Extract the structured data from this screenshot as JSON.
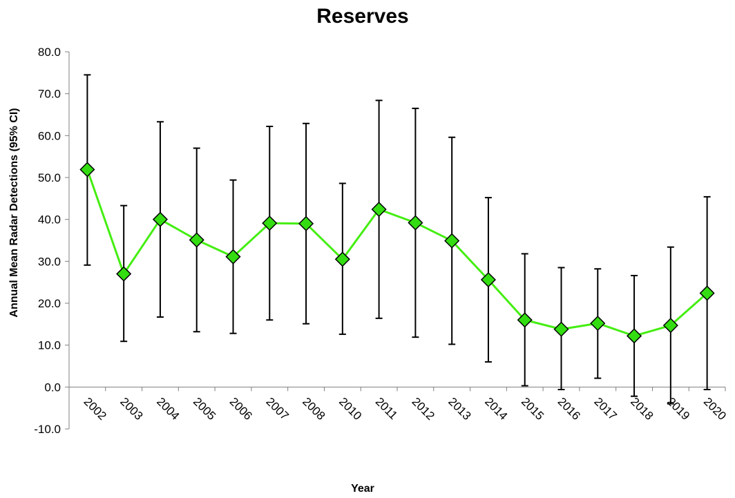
{
  "chart_data": {
    "type": "line",
    "title": "Reserves",
    "xlabel": "Year",
    "ylabel": "Annual Mean Radar Detections (95% CI)",
    "categories": [
      "2002",
      "2003",
      "2004",
      "2005",
      "2006",
      "2007",
      "2008",
      "2010",
      "2011",
      "2012",
      "2013",
      "2014",
      "2015",
      "2016",
      "2017",
      "2018",
      "2019",
      "2020"
    ],
    "series": [
      {
        "values": [
          51.9,
          27.0,
          40.0,
          35.1,
          31.1,
          39.1,
          39.0,
          30.5,
          42.4,
          39.2,
          34.9,
          25.6,
          16.0,
          13.8,
          15.2,
          12.2,
          14.7,
          22.4
        ],
        "ci_upper": [
          74.5,
          43.3,
          63.3,
          57.0,
          49.4,
          62.2,
          62.9,
          48.6,
          68.4,
          66.5,
          59.6,
          45.2,
          31.8,
          28.5,
          28.2,
          26.6,
          33.4,
          45.4
        ],
        "ci_lower": [
          29.1,
          10.9,
          16.7,
          13.2,
          12.8,
          16.0,
          15.1,
          12.6,
          16.4,
          11.9,
          10.2,
          6.0,
          0.3,
          -0.6,
          2.1,
          -2.2,
          -4.0,
          -0.6
        ]
      }
    ],
    "yticks": [
      "80.0",
      "70.0",
      "60.0",
      "50.0",
      "40.0",
      "30.0",
      "20.0",
      "10.0",
      "0.0",
      "-10.0"
    ],
    "ylim": [
      -10,
      80
    ],
    "grid": false,
    "colors": {
      "line": "#44ee11",
      "marker_fill": "#33dd11",
      "marker_stroke": "#000000",
      "errorbar": "#000000"
    }
  }
}
